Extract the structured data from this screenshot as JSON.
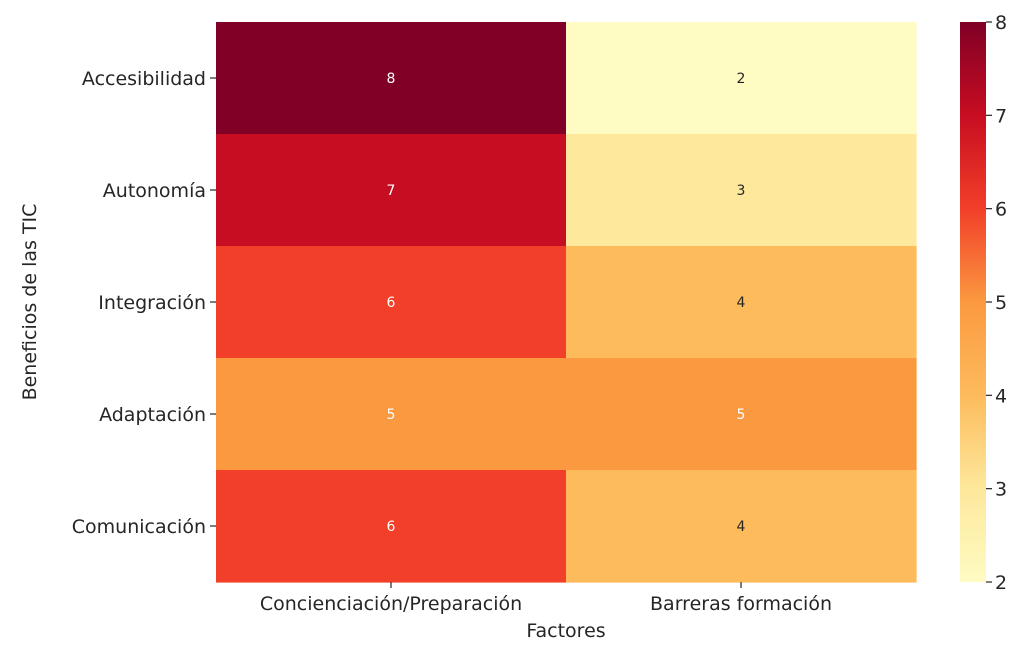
{
  "chart_data": {
    "type": "heatmap",
    "xlabel": "Factores",
    "ylabel": "Beneficios de las TIC",
    "x_categories": [
      "Concienciación/Preparación",
      "Barreras formación"
    ],
    "y_categories": [
      "Accesibilidad",
      "Autonomía",
      "Integración",
      "Adaptación",
      "Comunicación"
    ],
    "values": [
      [
        8,
        2
      ],
      [
        7,
        3
      ],
      [
        6,
        4
      ],
      [
        5,
        5
      ],
      [
        6,
        4
      ]
    ],
    "colorbar": {
      "min": 2,
      "max": 8,
      "ticks": [
        2,
        3,
        4,
        5,
        6,
        7,
        8
      ],
      "colormap": "YlOrRd",
      "colors": {
        "2": "#fefbc3",
        "3": "#fde89c",
        "4": "#fdbb5c",
        "5": "#fb9940",
        "6": "#f23f29",
        "7": "#c70d21",
        "8": "#800026"
      }
    },
    "annotation_colors": {
      "dark_text": "#262626",
      "light_text": "#ffffff"
    }
  }
}
